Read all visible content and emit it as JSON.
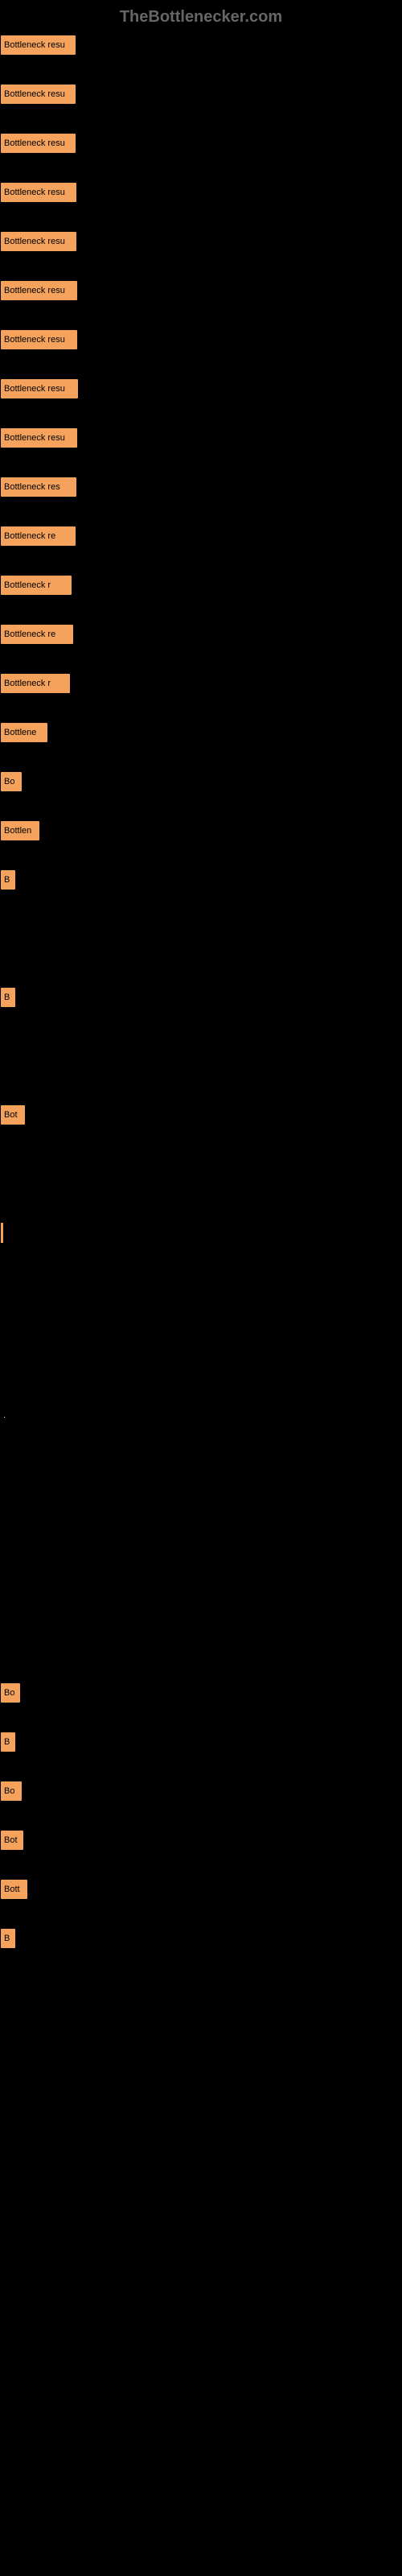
{
  "header": {
    "title": "TheBottlenecker.com"
  },
  "items": [
    {
      "label": "Bottleneck resu",
      "width": 85
    },
    {
      "label": "Bottleneck resu",
      "width": 85
    },
    {
      "label": "Bottleneck resu",
      "width": 85
    },
    {
      "label": "Bottleneck resu",
      "width": 86
    },
    {
      "label": "Bottleneck resu",
      "width": 86
    },
    {
      "label": "Bottleneck resu",
      "width": 87
    },
    {
      "label": "Bottleneck resu",
      "width": 87
    },
    {
      "label": "Bottleneck resu",
      "width": 88
    },
    {
      "label": "Bottleneck resu",
      "width": 87
    },
    {
      "label": "Bottleneck res",
      "width": 86
    },
    {
      "label": "Bottleneck re",
      "width": 85
    },
    {
      "label": "Bottleneck r",
      "width": 80
    },
    {
      "label": "Bottleneck re",
      "width": 82
    },
    {
      "label": "Bottleneck r",
      "width": 78
    },
    {
      "label": "Bottlene",
      "width": 50
    },
    {
      "label": "Bo",
      "width": 18
    },
    {
      "label": "Bottlen",
      "width": 40
    },
    {
      "label": "B",
      "width": 10
    },
    {
      "label": "",
      "width": 0,
      "empty": true
    },
    {
      "label": "B",
      "width": 10
    },
    {
      "label": "",
      "width": 0,
      "empty": true
    },
    {
      "label": "Bot",
      "width": 22
    },
    {
      "label": "",
      "width": 0,
      "empty": true
    },
    {
      "label": "",
      "width": 3,
      "thin": true
    },
    {
      "label": "",
      "width": 0,
      "empty": true
    },
    {
      "label": "",
      "width": 0,
      "empty": true
    },
    {
      "label": "",
      "width": 0,
      "dot": true
    },
    {
      "label": "",
      "width": 0,
      "empty": true
    },
    {
      "label": "",
      "width": 0,
      "empty": true
    },
    {
      "label": "",
      "width": 0,
      "empty": true
    },
    {
      "label": "Bo",
      "width": 16
    },
    {
      "label": "B",
      "width": 10
    },
    {
      "label": "Bo",
      "width": 18
    },
    {
      "label": "Bot",
      "width": 20
    },
    {
      "label": "Bott",
      "width": 25
    },
    {
      "label": "B",
      "width": 10
    }
  ]
}
